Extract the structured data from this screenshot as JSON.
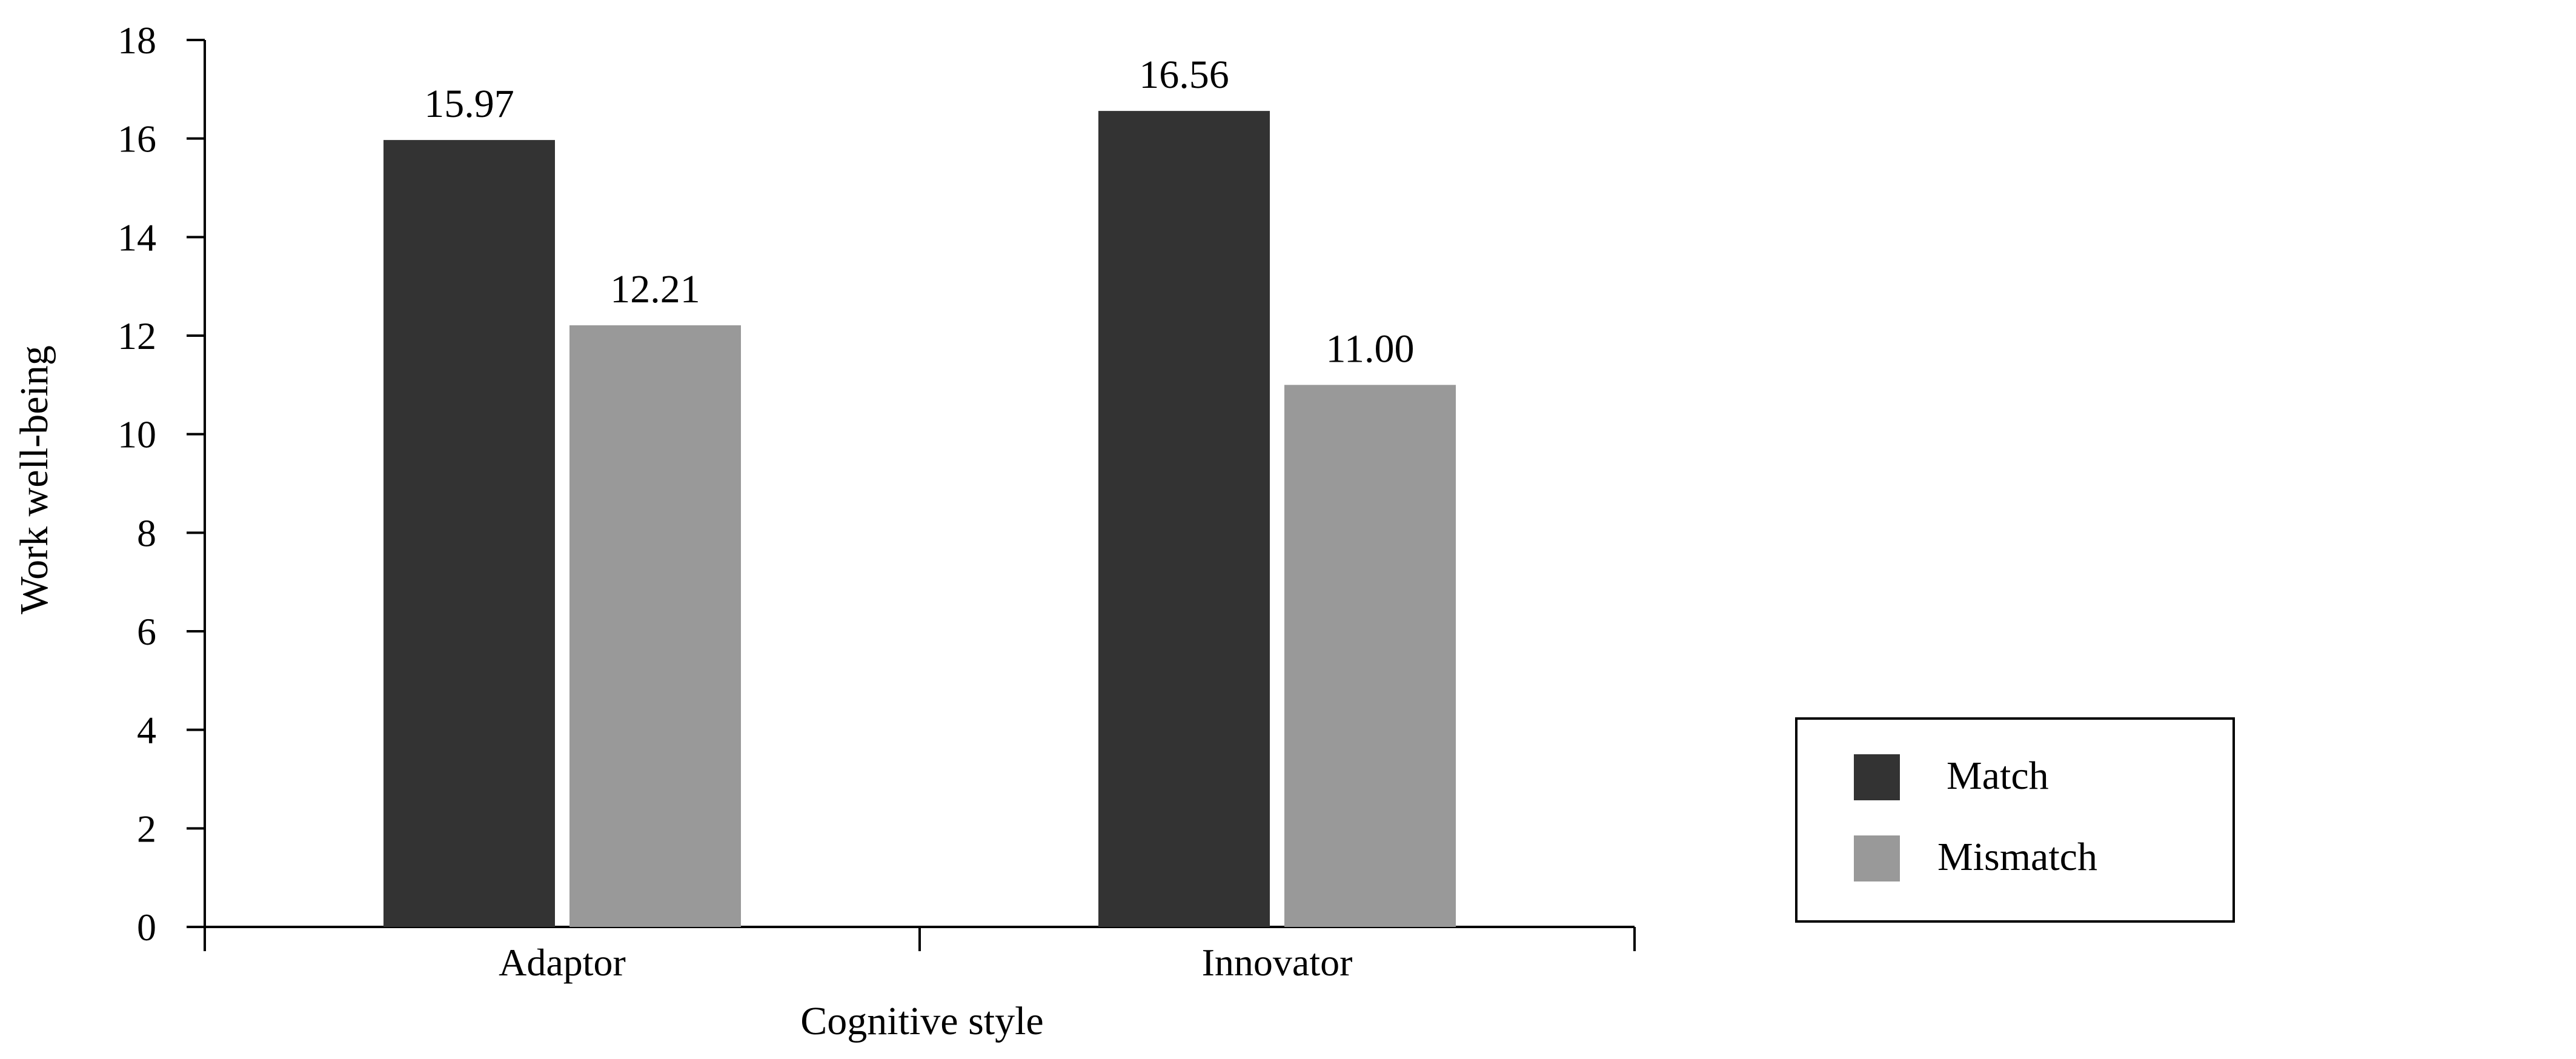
{
  "chart_data": {
    "type": "bar",
    "categories": [
      "Adaptor",
      "Innovator"
    ],
    "series": [
      {
        "name": "Match",
        "values": [
          15.97,
          16.56
        ],
        "labels": [
          "15.97",
          "16.56"
        ],
        "color": "#333333"
      },
      {
        "name": "Mismatch",
        "values": [
          12.21,
          11.0
        ],
        "labels": [
          "12.21",
          "11.00"
        ],
        "color": "#999999"
      }
    ],
    "xlabel": "Cognitive style",
    "ylabel": "Work well-being",
    "ylim": [
      0,
      18
    ],
    "yticks": [
      "0",
      "2",
      "4",
      "6",
      "8",
      "10",
      "12",
      "14",
      "16",
      "18"
    ],
    "grid": false,
    "legend_position": "right"
  }
}
